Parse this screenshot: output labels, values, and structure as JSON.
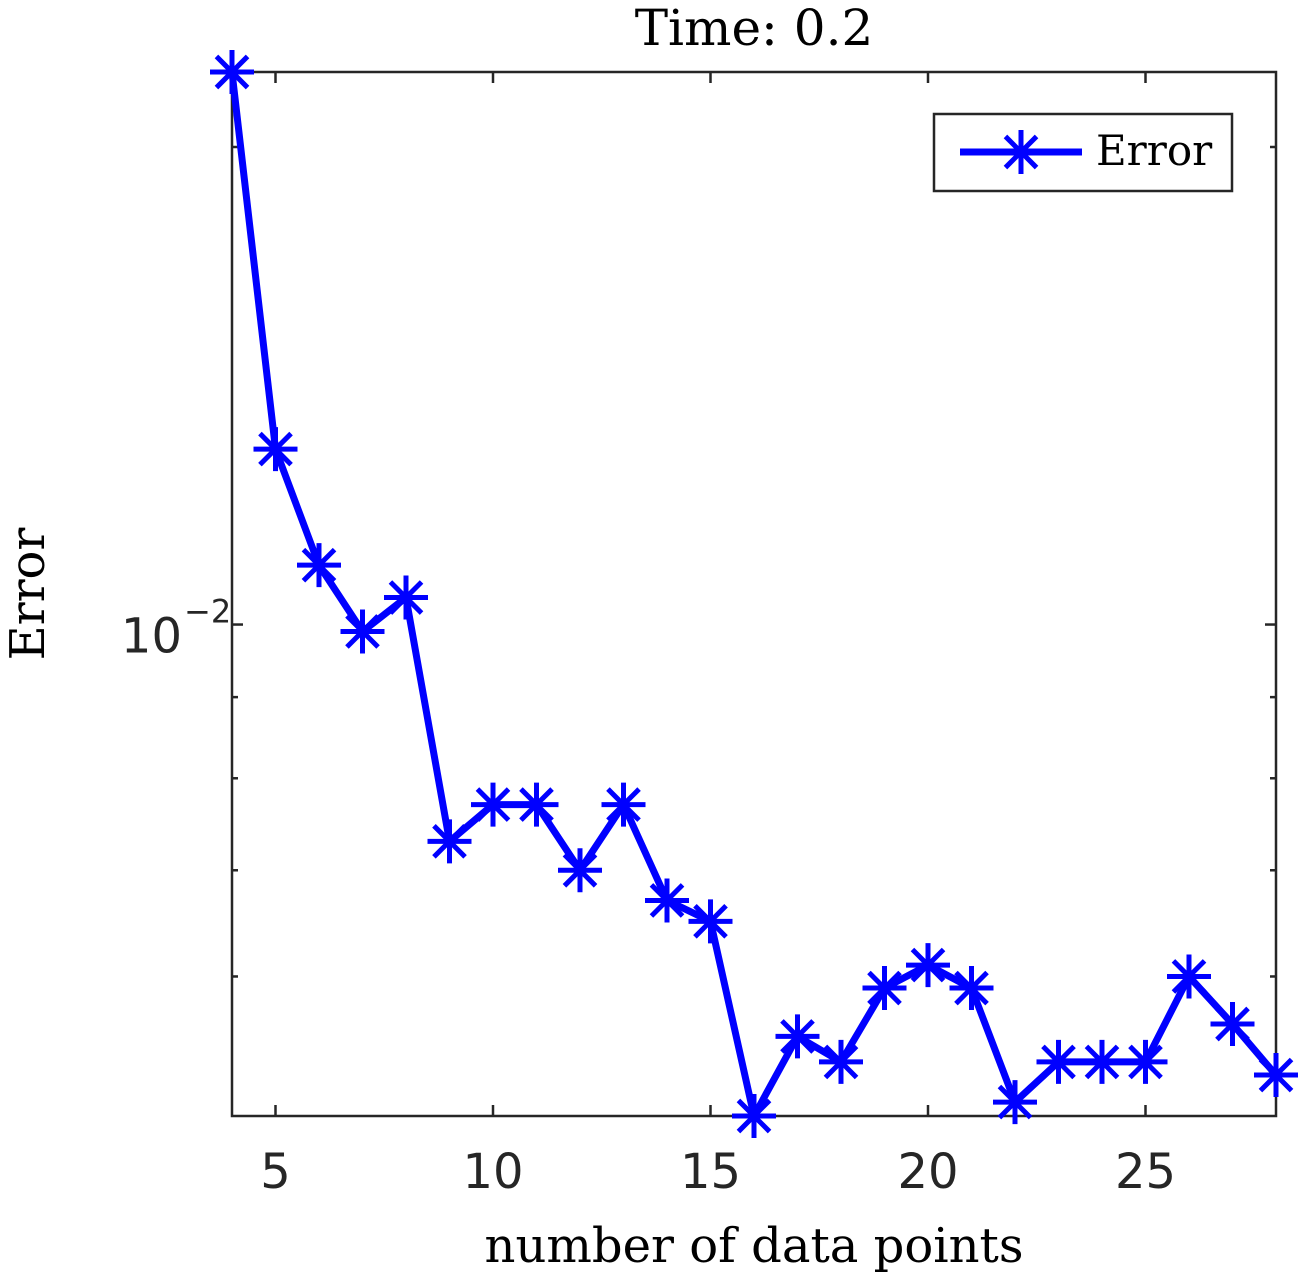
{
  "chart_data": {
    "type": "line",
    "title": "Time: 0.2",
    "xlabel": "number of data points",
    "ylabel": "Error",
    "xlim": [
      4,
      28
    ],
    "x_ticks": [
      5,
      10,
      15,
      20,
      25
    ],
    "y_scale": "log",
    "ylim": [
      0.0049,
      0.0223
    ],
    "y_major_ticks": [
      {
        "value": 0.01,
        "base": "10",
        "exponent": "−2"
      }
    ],
    "y_minor_ticks": [
      0.006,
      0.007,
      0.008,
      0.009,
      0.02
    ],
    "grid": false,
    "legend": "top-right",
    "series": [
      {
        "name": "Error",
        "color": "#0000ff",
        "marker": "asterisk",
        "x": [
          4,
          5,
          6,
          7,
          8,
          9,
          10,
          11,
          12,
          13,
          14,
          15,
          16,
          17,
          18,
          19,
          20,
          21,
          22,
          23,
          24,
          25,
          26,
          27,
          28
        ],
        "y": [
          0.0223,
          0.0129,
          0.0109,
          0.0099,
          0.0104,
          0.0073,
          0.0077,
          0.0077,
          0.007,
          0.0077,
          0.0067,
          0.0065,
          0.0049,
          0.0055,
          0.0053,
          0.0059,
          0.0061,
          0.0059,
          0.005,
          0.0053,
          0.0053,
          0.0053,
          0.006,
          0.0056,
          0.0052
        ]
      }
    ]
  }
}
